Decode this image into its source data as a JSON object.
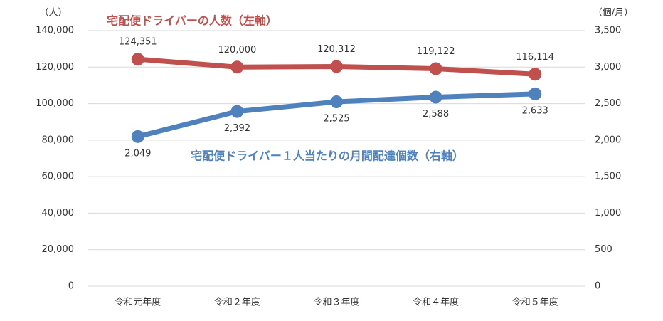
{
  "chart_data": {
    "type": "line",
    "categories": [
      "令和元年度",
      "令和２年度",
      "令和３年度",
      "令和４年度",
      "令和５年度"
    ],
    "series": [
      {
        "name": "宅配便ドライバーの人数（左軸）",
        "color": "#c0504d",
        "axis": "y",
        "values": [
          124351,
          120000,
          120312,
          119122,
          116114
        ],
        "value_labels": [
          "124,351",
          "120,000",
          "120,312",
          "119,122",
          "116,114"
        ]
      },
      {
        "name": "宅配便ドライバー１人当たりの月間配達個数（右軸）",
        "color": "#4f81bd",
        "axis": "y2",
        "values": [
          2049,
          2392,
          2525,
          2588,
          2633
        ],
        "value_labels": [
          "2,049",
          "2,392",
          "2,525",
          "2,588",
          "2,633"
        ]
      }
    ],
    "ylabel": "（人）",
    "y2label": "（個/月）",
    "ylim": [
      0,
      140000
    ],
    "yticks": [
      0,
      {
        "value": 20000,
        "label": "20,000"
      },
      {
        "value": 40000,
        "label": "40,000"
      },
      {
        "value": 60000,
        "label": "60,000"
      },
      {
        "value": 80000,
        "label": "80,000"
      },
      {
        "value": 100000,
        "label": "100,000"
      },
      {
        "value": 120000,
        "label": "120,000"
      },
      {
        "value": 140000,
        "label": "140,000"
      }
    ],
    "y2lim": [
      0,
      3500
    ],
    "y2ticks": [
      0,
      500,
      {
        "value": 1000,
        "label": "1,000"
      },
      {
        "value": 1500,
        "label": "1,500"
      },
      {
        "value": 2000,
        "label": "2,000"
      },
      {
        "value": 2500,
        "label": "2,500"
      },
      {
        "value": 3000,
        "label": "3,000"
      },
      {
        "value": 3500,
        "label": "3,500"
      }
    ],
    "grid": true
  }
}
